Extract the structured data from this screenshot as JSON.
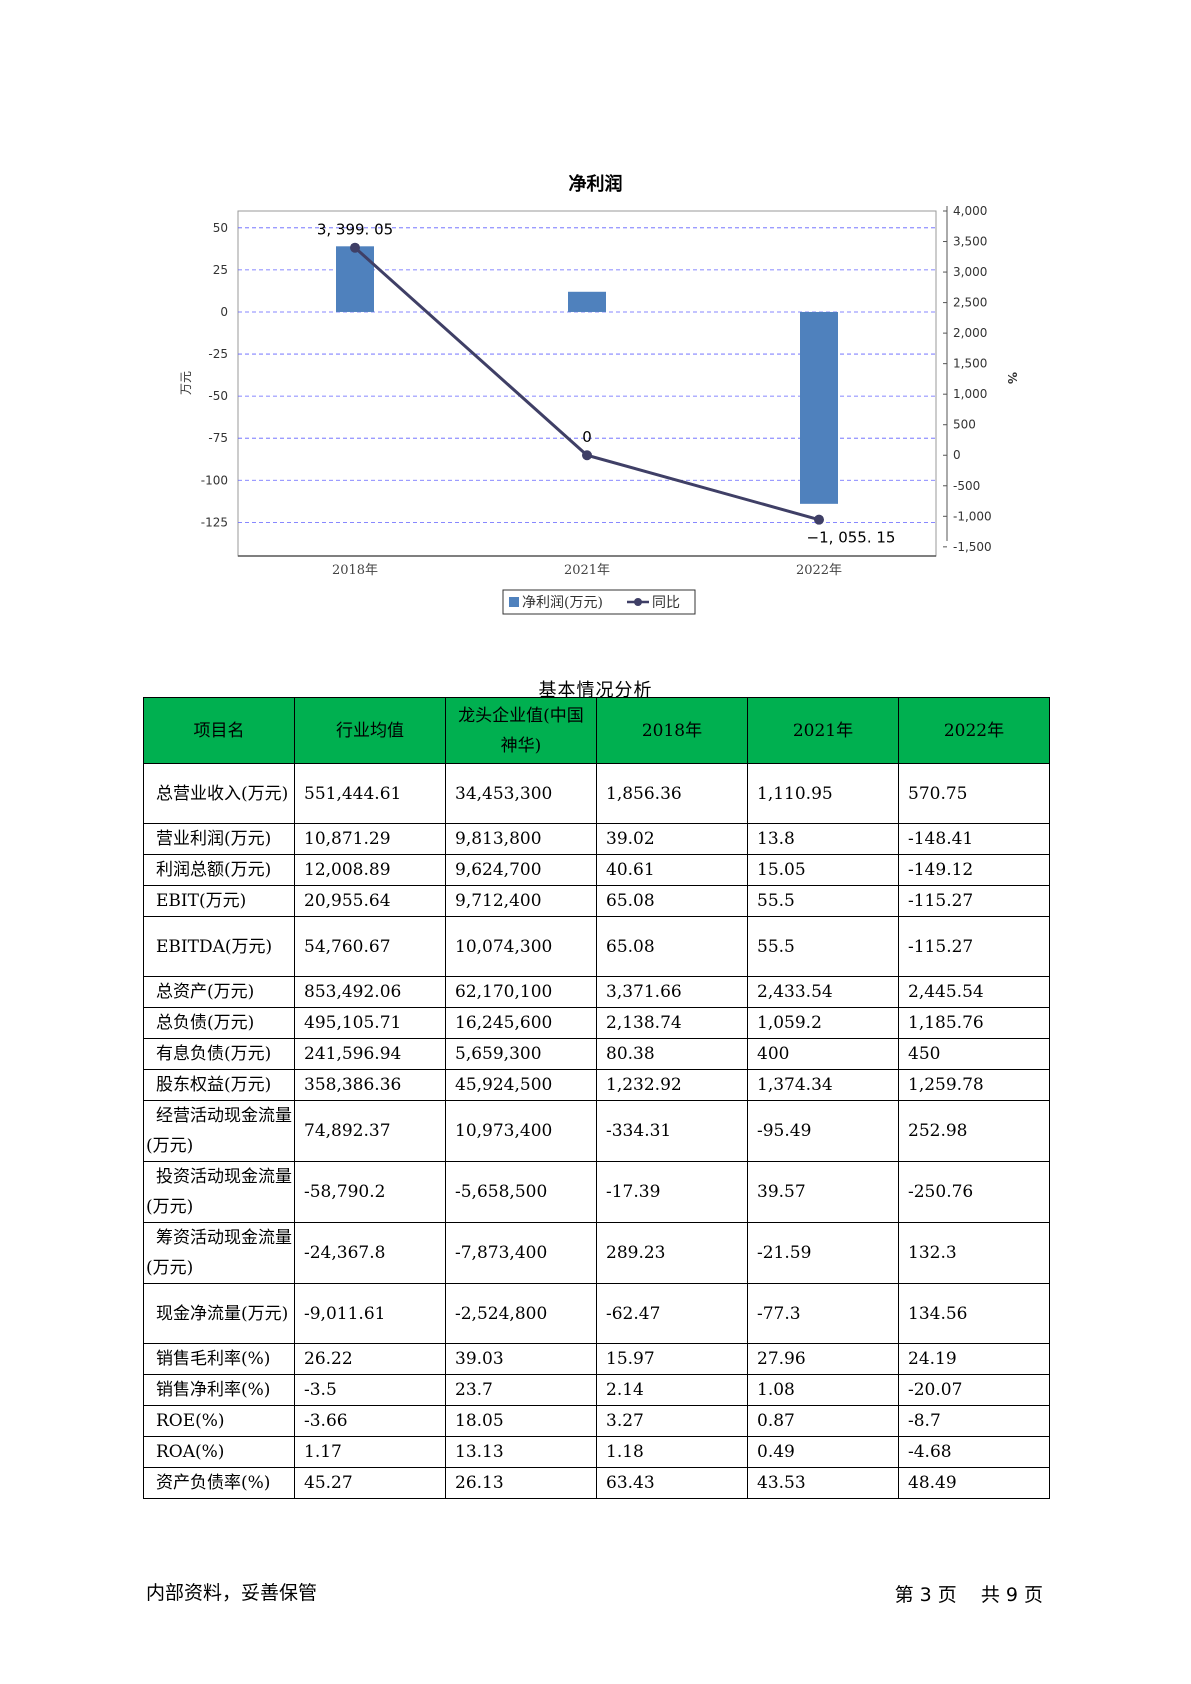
{
  "chart_data": {
    "type": "bar",
    "title": "净利润",
    "categories": [
      "2018年",
      "2021年",
      "2022年"
    ],
    "series": [
      {
        "name": "净利润(万元)",
        "type": "bar",
        "axis": "left",
        "color": "#4f81bd",
        "values": [
          39.02,
          12.0,
          -114.0
        ]
      },
      {
        "name": "同比",
        "type": "line",
        "axis": "right",
        "color": "#3f3f66",
        "values": [
          3399.05,
          0,
          -1055.15
        ]
      }
    ],
    "data_labels": [
      "3, 399. 05",
      "0",
      "−1, 055. 15"
    ],
    "ylabel_left": "万元",
    "ylabel_right": "%",
    "ylim_left": [
      -145,
      60
    ],
    "ylim_right": [
      -1650,
      4000
    ],
    "yticks_left": [
      "50",
      "25",
      "0",
      "-25",
      "-50",
      "-75",
      "-100",
      "-125"
    ],
    "yticks_right": [
      "4,000",
      "3,500",
      "3,000",
      "2,500",
      "2,000",
      "1,500",
      "1,000",
      "500",
      "0",
      "-500",
      "-1,000",
      "-1,500"
    ],
    "grid": true,
    "legend_position": "bottom-center"
  },
  "table": {
    "caption": "基本情况分析",
    "headers": [
      "项目名",
      "行业均值",
      "龙头企业值(中国神华)",
      "2018年",
      "2021年",
      "2022年"
    ],
    "rows": [
      [
        "总营业收入(万元)",
        "551,444.61",
        "34,453,300",
        "1,856.36",
        "1,110.95",
        "570.75"
      ],
      [
        "营业利润(万元)",
        "10,871.29",
        "9,813,800",
        "39.02",
        "13.8",
        "-148.41"
      ],
      [
        "利润总额(万元)",
        "12,008.89",
        "9,624,700",
        "40.61",
        "15.05",
        "-149.12"
      ],
      [
        "EBIT(万元)",
        "20,955.64",
        "9,712,400",
        "65.08",
        "55.5",
        "-115.27"
      ],
      [
        "EBITDA(万元)",
        "54,760.67",
        "10,074,300",
        "65.08",
        "55.5",
        "-115.27"
      ],
      [
        "总资产(万元)",
        "853,492.06",
        "62,170,100",
        "3,371.66",
        "2,433.54",
        "2,445.54"
      ],
      [
        "总负债(万元)",
        "495,105.71",
        "16,245,600",
        "2,138.74",
        "1,059.2",
        "1,185.76"
      ],
      [
        "有息负债(万元)",
        "241,596.94",
        "5,659,300",
        "80.38",
        "400",
        "450"
      ],
      [
        "股东权益(万元)",
        "358,386.36",
        "45,924,500",
        "1,232.92",
        "1,374.34",
        "1,259.78"
      ],
      [
        "经营活动现金流量(万元)",
        "74,892.37",
        "10,973,400",
        "-334.31",
        "-95.49",
        "252.98"
      ],
      [
        "投资活动现金流量(万元)",
        "-58,790.2",
        "-5,658,500",
        "-17.39",
        "39.57",
        "-250.76"
      ],
      [
        "筹资活动现金流量(万元)",
        "-24,367.8",
        "-7,873,400",
        "289.23",
        "-21.59",
        "132.3"
      ],
      [
        "现金净流量(万元)",
        "-9,011.61",
        "-2,524,800",
        "-62.47",
        "-77.3",
        "134.56"
      ],
      [
        "销售毛利率(%)",
        "26.22",
        "39.03",
        "15.97",
        "27.96",
        "24.19"
      ],
      [
        "销售净利率(%)",
        "-3.5",
        "23.7",
        "2.14",
        "1.08",
        "-20.07"
      ],
      [
        "ROE(%)",
        "-3.66",
        "18.05",
        "3.27",
        "0.87",
        "-8.7"
      ],
      [
        "ROA(%)",
        "1.17",
        "13.13",
        "1.18",
        "0.49",
        "-4.68"
      ],
      [
        "资产负债率(%)",
        "45.27",
        "26.13",
        "63.43",
        "43.53",
        "48.49"
      ]
    ]
  },
  "footer": {
    "left": "内部资料，妥善保管",
    "page_prefix": "第",
    "page_current": "3",
    "page_unit": "页",
    "total_prefix": "共",
    "page_total": "9",
    "total_unit": "页"
  }
}
